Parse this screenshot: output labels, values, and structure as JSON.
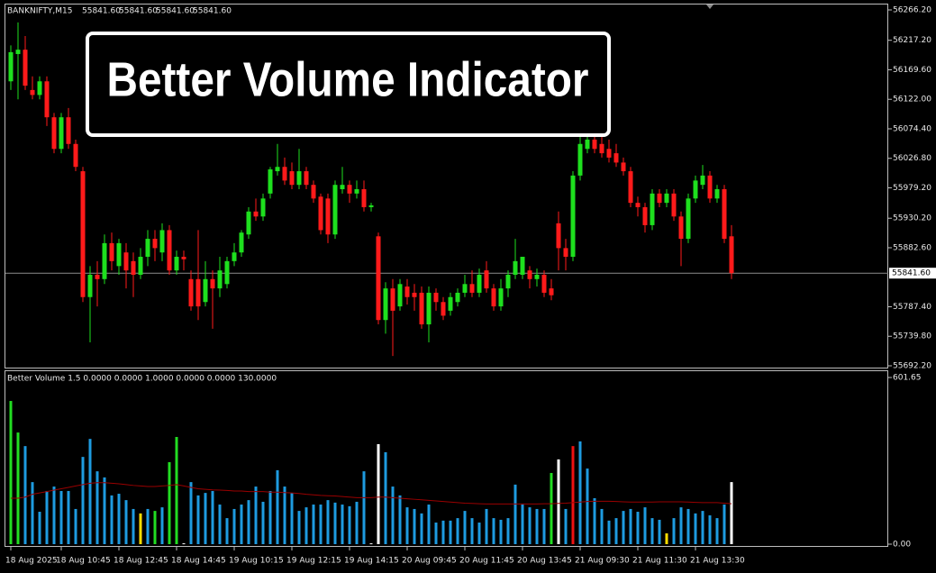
{
  "chart_data": [
    {
      "type": "candlestick",
      "title": "BANKNIFTY,M15",
      "header_values": [
        "55841.60",
        "55841.60",
        "55841.60",
        "55841.60"
      ],
      "annotation": "Better Volume Indicator",
      "categories": [
        "18 Aug 2025",
        null,
        null,
        null,
        null,
        null,
        null,
        "18 Aug 10:45",
        null,
        null,
        null,
        null,
        null,
        null,
        null,
        "18 Aug 12:45",
        null,
        null,
        null,
        null,
        null,
        null,
        null,
        "18 Aug 14:45",
        null,
        null,
        null,
        null,
        null,
        null,
        null,
        "19 Aug 10:15",
        null,
        null,
        null,
        null,
        null,
        null,
        null,
        "19 Aug 12:15",
        null,
        null,
        null,
        null,
        null,
        null,
        null,
        "19 Aug 14:15",
        null,
        null,
        null,
        null,
        null,
        null,
        null,
        "20 Aug 09:45",
        null,
        null,
        null,
        null,
        null,
        null,
        null,
        "20 Aug 11:45",
        null,
        null,
        null,
        null,
        null,
        null,
        null,
        "20 Aug 13:45",
        null,
        null,
        null,
        null,
        null,
        null,
        null,
        "21 Aug 09:30",
        null,
        null,
        null,
        null,
        null,
        null,
        null,
        "21 Aug 11:30",
        null,
        null,
        null,
        null,
        null,
        null,
        null,
        "21 Aug 13:30",
        null,
        null,
        null,
        null,
        null
      ],
      "open": [
        56151,
        56195,
        56202,
        56137,
        56129,
        56151,
        56093,
        56042,
        56093,
        56050,
        56006,
        55803,
        55839,
        55832,
        55890,
        55853,
        55875,
        55861,
        55839,
        55868,
        55897,
        55875,
        55911,
        55846,
        55868,
        55832,
        55832,
        55795,
        55832,
        55817,
        55824,
        55861,
        55875,
        55904,
        55941,
        55933,
        55970,
        56006,
        56013,
        56006,
        55984,
        56006,
        55984,
        55965,
        55962,
        55904,
        55977,
        55984,
        55970,
        55977,
        55948,
        55901,
        55766,
        55817,
        55788,
        55820,
        55810,
        55810,
        55759,
        55810,
        55795,
        55781,
        55795,
        55810,
        55824,
        55810,
        55846,
        55817,
        55788,
        55817,
        55839,
        55839,
        55846,
        55832,
        55839,
        55817,
        55922,
        55882,
        55868,
        55999,
        56042,
        56057,
        56050,
        56042,
        56035,
        56020,
        56006,
        55955,
        55948,
        55919,
        55970,
        55955,
        55970,
        55933,
        55897,
        55962,
        55984,
        55999,
        55962,
        55977,
        55901
      ],
      "high": [
        56209,
        56246,
        56224,
        56159,
        56159,
        56159,
        56100,
        56100,
        56108,
        56057,
        56013,
        55853,
        55861,
        55904,
        55907,
        55897,
        55890,
        55875,
        55882,
        55911,
        55911,
        55922,
        55919,
        55878,
        55878,
        55846,
        55911,
        55861,
        55846,
        55868,
        55868,
        55890,
        55911,
        55948,
        55962,
        55970,
        56013,
        56050,
        56028,
        56020,
        56042,
        56013,
        55991,
        55970,
        55970,
        55991,
        56013,
        55991,
        55991,
        55991,
        55955,
        55907,
        55827,
        55832,
        55832,
        55832,
        55824,
        55820,
        55820,
        55817,
        55803,
        55810,
        55817,
        55839,
        55846,
        55849,
        55861,
        55824,
        55832,
        55846,
        55897,
        55868,
        55853,
        55849,
        55846,
        55832,
        55941,
        55897,
        56006,
        56093,
        56071,
        56079,
        56064,
        56057,
        56050,
        56028,
        56013,
        55965,
        55955,
        55977,
        55977,
        55977,
        55977,
        55941,
        55970,
        55999,
        56016,
        56006,
        55984,
        55984,
        55919
      ],
      "low": [
        56137,
        56122,
        56137,
        56122,
        56122,
        56079,
        56035,
        56035,
        56042,
        56006,
        55795,
        55730,
        55788,
        55824,
        55846,
        55839,
        55817,
        55803,
        55832,
        55853,
        55861,
        55861,
        55839,
        55839,
        55846,
        55781,
        55766,
        55788,
        55752,
        55803,
        55817,
        55853,
        55868,
        55897,
        55926,
        55926,
        55962,
        55999,
        55984,
        55977,
        55977,
        55977,
        55955,
        55904,
        55890,
        55897,
        55970,
        55955,
        55962,
        55941,
        55941,
        55759,
        55744,
        55708,
        55781,
        55791,
        55781,
        55752,
        55730,
        55781,
        55766,
        55773,
        55788,
        55803,
        55803,
        55803,
        55810,
        55781,
        55781,
        55803,
        55832,
        55832,
        55817,
        55820,
        55803,
        55798,
        55846,
        55846,
        55861,
        55991,
        56035,
        56035,
        56028,
        56020,
        56013,
        55999,
        55948,
        55933,
        55907,
        55911,
        55948,
        55948,
        55926,
        55853,
        55890,
        55955,
        55977,
        55955,
        55955,
        55890,
        55832
      ],
      "close": [
        56198,
        56202,
        56144,
        56129,
        56151,
        56093,
        56042,
        56093,
        56050,
        56013,
        55803,
        55839,
        55832,
        55890,
        55861,
        55890,
        55846,
        55839,
        55868,
        55897,
        55882,
        55911,
        55846,
        55868,
        55864,
        55788,
        55788,
        55832,
        55817,
        55846,
        55861,
        55875,
        55907,
        55941,
        55933,
        55962,
        56009,
        56013,
        55991,
        55984,
        56006,
        55984,
        55962,
        55911,
        55904,
        55984,
        55984,
        55970,
        55977,
        55948,
        55951,
        55766,
        55817,
        55781,
        55824,
        55803,
        55803,
        55759,
        55810,
        55795,
        55773,
        55803,
        55810,
        55824,
        55810,
        55839,
        55817,
        55788,
        55817,
        55839,
        55861,
        55868,
        55832,
        55839,
        55810,
        55806,
        55882,
        55868,
        55999,
        56050,
        56057,
        56042,
        56035,
        56028,
        56020,
        56006,
        55955,
        55948,
        55919,
        55970,
        55955,
        55970,
        55933,
        55897,
        55962,
        55991,
        55999,
        55962,
        55977,
        55897,
        55841.6
      ],
      "up_color": "#1ee01e",
      "down_color": "#ff1a1a",
      "ylim": [
        55689.3,
        56274.9
      ],
      "yticks": [
        {
          "value": 56266.2,
          "label": "56266.20"
        },
        {
          "value": 56217.2,
          "label": "56217.20"
        },
        {
          "value": 56169.6,
          "label": "56169.60"
        },
        {
          "value": 56122,
          "label": "56122.00"
        },
        {
          "value": 56074.4,
          "label": "56074.40"
        },
        {
          "value": 56026.8,
          "label": "56026.80"
        },
        {
          "value": 55979.2,
          "label": "55979.20"
        },
        {
          "value": 55930.2,
          "label": "55930.20"
        },
        {
          "value": 55882.6,
          "label": "55882.60"
        },
        {
          "value": 55787.4,
          "label": "55787.40"
        },
        {
          "value": 55739.8,
          "label": "55739.80"
        },
        {
          "value": 55692.2,
          "label": "55692.20"
        }
      ],
      "current_price": {
        "value": 55841.6,
        "label": "55841.60"
      }
    },
    {
      "type": "bar",
      "title": "Better Volume 1.5 0.0000 0.0000 1.0000 0.0000 0.0000 130.0000",
      "values": [
        517,
        403,
        354,
        224,
        117,
        192,
        208,
        192,
        192,
        127,
        315,
        380,
        263,
        241,
        176,
        182,
        159,
        127,
        111,
        127,
        120,
        133,
        296,
        387,
        3,
        224,
        176,
        185,
        192,
        143,
        94,
        127,
        143,
        159,
        208,
        153,
        192,
        267,
        208,
        185,
        120,
        133,
        143,
        143,
        159,
        150,
        143,
        137,
        153,
        263,
        3,
        361,
        332,
        208,
        176,
        133,
        127,
        111,
        143,
        78,
        85,
        85,
        94,
        120,
        94,
        78,
        127,
        94,
        88,
        94,
        215,
        143,
        133,
        127,
        127,
        257,
        306,
        127,
        354,
        371,
        273,
        166,
        127,
        85,
        94,
        120,
        127,
        117,
        133,
        94,
        88,
        39,
        94,
        133,
        127,
        111,
        120,
        104,
        94,
        143,
        224
      ],
      "colors": [
        "#22dd22",
        "#22dd22",
        "#1e9be0",
        "#1e9be0",
        "#1e9be0",
        "#1e9be0",
        "#1e9be0",
        "#1e9be0",
        "#1e9be0",
        "#1e9be0",
        "#1e9be0",
        "#1e9be0",
        "#1e9be0",
        "#1e9be0",
        "#1e9be0",
        "#1e9be0",
        "#1e9be0",
        "#1e9be0",
        "#ffdd00",
        "#1e9be0",
        "#22dd22",
        "#1e9be0",
        "#22dd22",
        "#22dd22",
        "#ffffff",
        "#1e9be0",
        "#1e9be0",
        "#1e9be0",
        "#1e9be0",
        "#1e9be0",
        "#1e9be0",
        "#1e9be0",
        "#1e9be0",
        "#1e9be0",
        "#1e9be0",
        "#1e9be0",
        "#1e9be0",
        "#1e9be0",
        "#1e9be0",
        "#1e9be0",
        "#1e9be0",
        "#1e9be0",
        "#1e9be0",
        "#1e9be0",
        "#1e9be0",
        "#1e9be0",
        "#1e9be0",
        "#1e9be0",
        "#1e9be0",
        "#1e9be0",
        "#ffffff",
        "#ffffff",
        "#1e9be0",
        "#1e9be0",
        "#1e9be0",
        "#1e9be0",
        "#1e9be0",
        "#1e9be0",
        "#1e9be0",
        "#1e9be0",
        "#1e9be0",
        "#1e9be0",
        "#1e9be0",
        "#1e9be0",
        "#1e9be0",
        "#1e9be0",
        "#1e9be0",
        "#1e9be0",
        "#1e9be0",
        "#1e9be0",
        "#1e9be0",
        "#1e9be0",
        "#1e9be0",
        "#1e9be0",
        "#1e9be0",
        "#22dd22",
        "#ffffff",
        "#1e9be0",
        "#ee1111",
        "#1e9be0",
        "#1e9be0",
        "#1e9be0",
        "#1e9be0",
        "#1e9be0",
        "#1e9be0",
        "#1e9be0",
        "#1e9be0",
        "#1e9be0",
        "#1e9be0",
        "#1e9be0",
        "#1e9be0",
        "#ffdd00",
        "#1e9be0",
        "#1e9be0",
        "#1e9be0",
        "#1e9be0",
        "#1e9be0",
        "#1e9be0",
        "#1e9be0",
        "#1e9be0",
        "#ffffff"
      ],
      "series": [
        {
          "color": "#9a0000",
          "values": [
            166,
            166,
            170,
            180,
            185,
            190,
            195,
            200,
            205,
            210,
            215,
            220,
            222,
            222,
            220,
            218,
            215,
            212,
            210,
            208,
            208,
            210,
            212,
            215,
            210,
            205,
            200,
            198,
            196,
            195,
            194,
            192,
            192,
            190,
            190,
            190,
            188,
            188,
            186,
            185,
            183,
            180,
            178,
            176,
            175,
            174,
            172,
            170,
            168,
            168,
            168,
            170,
            170,
            168,
            166,
            164,
            162,
            160,
            158,
            156,
            154,
            152,
            150,
            148,
            147,
            146,
            145,
            145,
            145,
            145,
            145,
            145,
            145,
            145,
            146,
            146,
            147,
            148,
            150,
            152,
            154,
            155,
            155,
            155,
            154,
            153,
            152,
            152,
            152,
            152,
            153,
            153,
            153,
            153,
            152,
            151,
            150,
            150,
            150,
            148,
            146
          ]
        }
      ],
      "ylim": [
        0,
        601.65
      ],
      "yticks": [
        601.65,
        {
          "value": 0,
          "label": "0.00"
        }
      ]
    }
  ]
}
